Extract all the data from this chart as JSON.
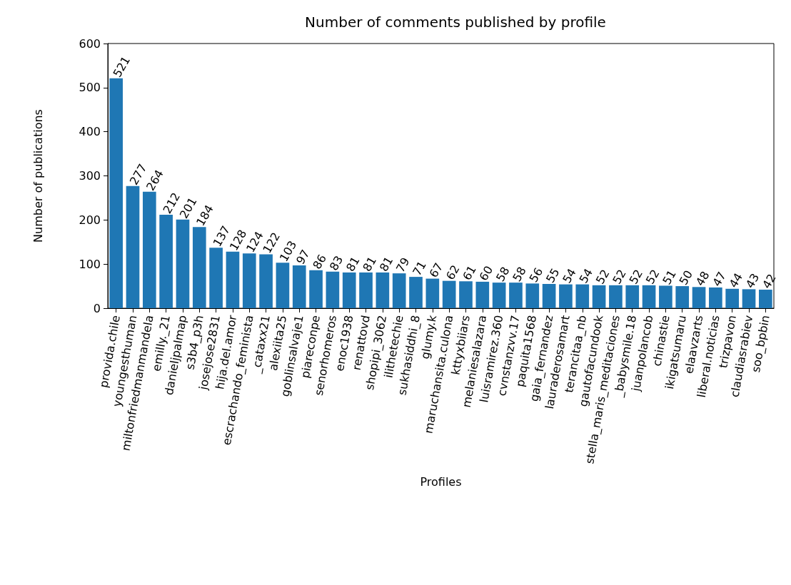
{
  "chart_data": {
    "type": "bar",
    "title": "Number of comments published by profile",
    "xlabel": "Profiles",
    "ylabel": "Number of publications",
    "categories": [
      "provida.chile",
      "youngesthuman",
      "miltonfriedmanmandela",
      "emilly._21",
      "danieljpalmap",
      "s3b4_p3h",
      "josejose2831",
      "hija.del.amor",
      "escrachando_feminista",
      "_cataxx21",
      "alexiita25",
      "goblinsalvaje1",
      "piareconpe",
      "senorhomeros",
      "enoc1938",
      "renattovd",
      "shopipi_3062",
      "ilithetechie",
      "sukhasiddhi_8",
      "glumy.k",
      "maruchansita.culona",
      "kttyxbiiars",
      "melaniesalazara",
      "luisramirez.360",
      "cvnstanzvv.17",
      "paquita1568",
      "gaia_fernandez",
      "lauraderosamart",
      "terancitaa_nb",
      "gautofacundook",
      "stella_maris_meditaciones",
      "_babysmile.18",
      "juanpolancob",
      "chinastie",
      "ikigatsumaru",
      "elaavzarts",
      "liberal.noticias",
      "trizpavon",
      "claudiasrabiev",
      "soo_bpbin"
    ],
    "values": [
      521,
      277,
      264,
      212,
      201,
      184,
      137,
      128,
      124,
      122,
      103,
      97,
      86,
      83,
      81,
      81,
      81,
      79,
      71,
      67,
      62,
      61,
      60,
      58,
      58,
      56,
      55,
      54,
      54,
      52,
      52,
      52,
      52,
      51,
      50,
      48,
      47,
      44,
      43,
      42
    ],
    "color": "#1f77b4",
    "ylim": [
      0,
      600
    ],
    "yticks": [
      0,
      100,
      200,
      300,
      400,
      500,
      600
    ],
    "grid": false,
    "data_labels": true
  }
}
